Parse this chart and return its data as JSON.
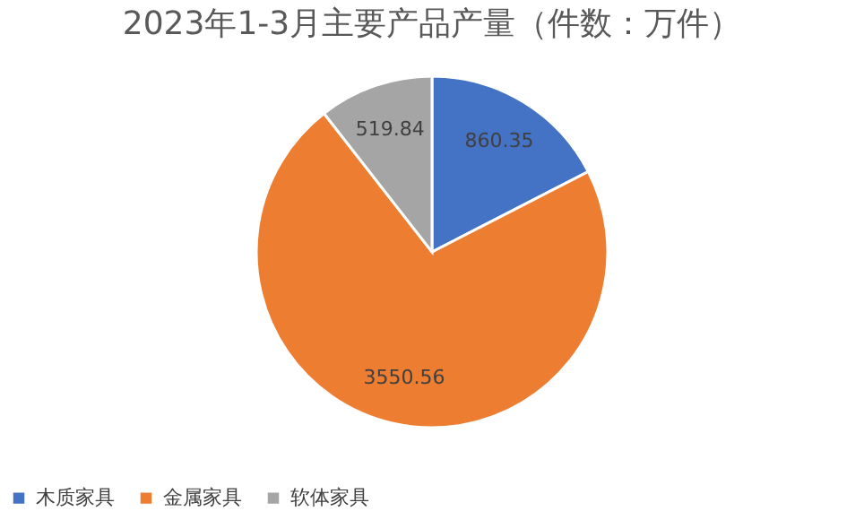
{
  "chart_data": {
    "type": "pie",
    "title": "2023年1-3月主要产品产量（件数：万件）",
    "categories": [
      "木质家具",
      "金属家具",
      "软体家具"
    ],
    "values": [
      860.35,
      3550.56,
      519.84
    ],
    "colors": [
      "#4472c4",
      "#ed7d31",
      "#a5a5a5"
    ],
    "data_labels": true,
    "legend": "bottom"
  }
}
